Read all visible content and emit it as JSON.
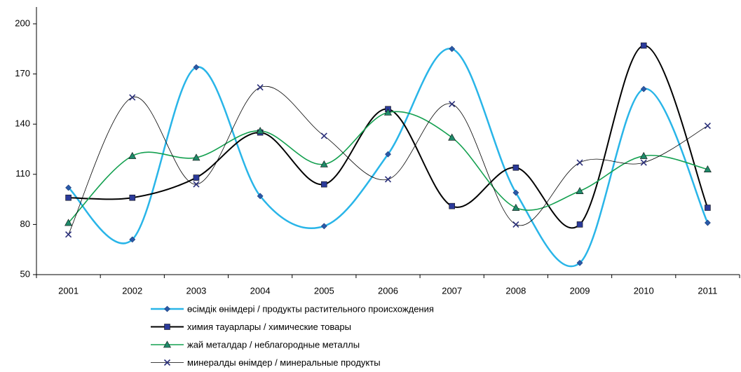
{
  "chart_data": {
    "type": "line",
    "categories": [
      "2001",
      "2002",
      "2003",
      "2004",
      "2005",
      "2006",
      "2007",
      "2008",
      "2009",
      "2010",
      "2011"
    ],
    "series": [
      {
        "name": "өсімдік өнімдері / продукты растительного происхождения",
        "color": "#29b5e8",
        "marker_color": "#2a5aa8",
        "marker": "diamond",
        "values": [
          102,
          71,
          174,
          97,
          79,
          122,
          185,
          99,
          57,
          161,
          81
        ]
      },
      {
        "name": "химия тауарлары / химические товары",
        "color": "#000000",
        "marker_color": "#2b3a9a",
        "marker": "square",
        "values": [
          96,
          96,
          108,
          135,
          104,
          149,
          91,
          114,
          80,
          187,
          90
        ]
      },
      {
        "name": "жай металдар / неблагородные металлы",
        "color": "#14a050",
        "marker_color": "#1f8a6a",
        "marker": "triangle",
        "values": [
          81,
          121,
          120,
          136,
          116,
          147,
          132,
          90,
          100,
          121,
          113
        ]
      },
      {
        "name": "минералды өнімдер / минеральные продукты",
        "color": "#000000",
        "marker_color": "#2a2f7a",
        "marker": "cross",
        "values": [
          74,
          156,
          104,
          162,
          133,
          107,
          152,
          80,
          117,
          117,
          139
        ]
      }
    ],
    "ylim": [
      50,
      200
    ],
    "yticks": [
      50,
      80,
      110,
      140,
      170,
      200
    ],
    "smooth": true
  }
}
